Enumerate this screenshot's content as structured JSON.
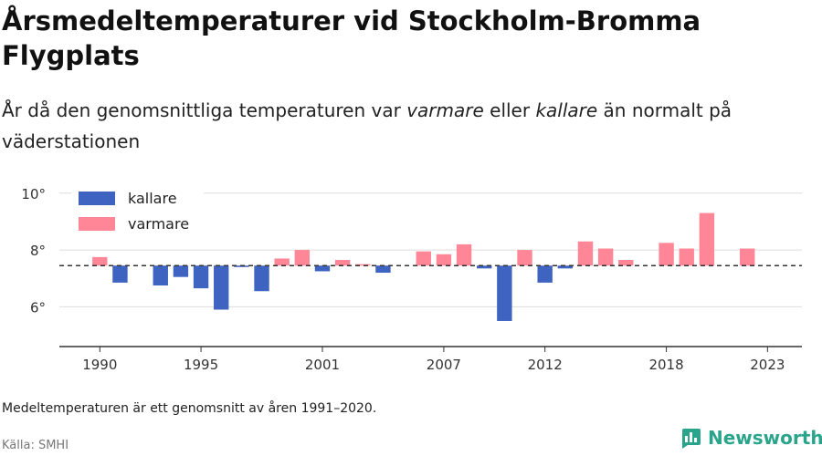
{
  "title": "Årsmedeltemperaturer vid Stockholm-Bromma Flygplats",
  "subtitle": {
    "before": "År då den genomsnittliga temperaturen var ",
    "warm_word": "varmare",
    "middle": " eller ",
    "cold_word": "kallare",
    "after": " än normalt på väderstationen"
  },
  "note": "Medeltemperaturen är ett genomsnitt av åren 1991–2020.",
  "source": "Källa: SMHI",
  "brand": {
    "name": "Newsworthy",
    "icon": "bar-chart-logo-icon",
    "color": "#2aa48b"
  },
  "colors": {
    "cold": "#3f63c0",
    "warm": "#fe8696",
    "grid": "#dddddd",
    "axis": "#333333",
    "baseline": "#333333"
  },
  "chart_data": {
    "type": "bar",
    "baseline": 7.45,
    "ylim": [
      4.6,
      10.7
    ],
    "xlim": [
      1988.0,
      2024.7
    ],
    "yticks": [
      {
        "value": 6,
        "label": "6°"
      },
      {
        "value": 8,
        "label": "8°"
      },
      {
        "value": 10,
        "label": "10°"
      }
    ],
    "xticks": [
      1990,
      1995,
      2001,
      2007,
      2012,
      2018,
      2023
    ],
    "legend": {
      "placement": "top-left",
      "items": [
        {
          "key": "cold",
          "label": "kallare"
        },
        {
          "key": "warm",
          "label": "varmare"
        }
      ]
    },
    "series": [
      {
        "name": "kallare",
        "key": "cold"
      },
      {
        "name": "varmare",
        "key": "warm"
      }
    ],
    "x": [
      1990,
      1991,
      1992,
      1993,
      1994,
      1995,
      1996,
      1997,
      1998,
      1999,
      2000,
      2001,
      2002,
      2003,
      2004,
      2005,
      2006,
      2007,
      2008,
      2009,
      2010,
      2011,
      2012,
      2013,
      2014,
      2015,
      2016,
      2017,
      2018,
      2019,
      2020,
      2021,
      2022
    ],
    "values": [
      7.75,
      6.85,
      null,
      6.75,
      7.05,
      6.65,
      5.9,
      7.4,
      6.55,
      7.7,
      8.0,
      7.25,
      7.65,
      7.5,
      7.2,
      null,
      7.95,
      7.85,
      8.2,
      7.35,
      5.5,
      8.0,
      6.85,
      7.35,
      8.3,
      8.05,
      7.65,
      null,
      8.25,
      8.05,
      9.3,
      null,
      8.05
    ]
  }
}
